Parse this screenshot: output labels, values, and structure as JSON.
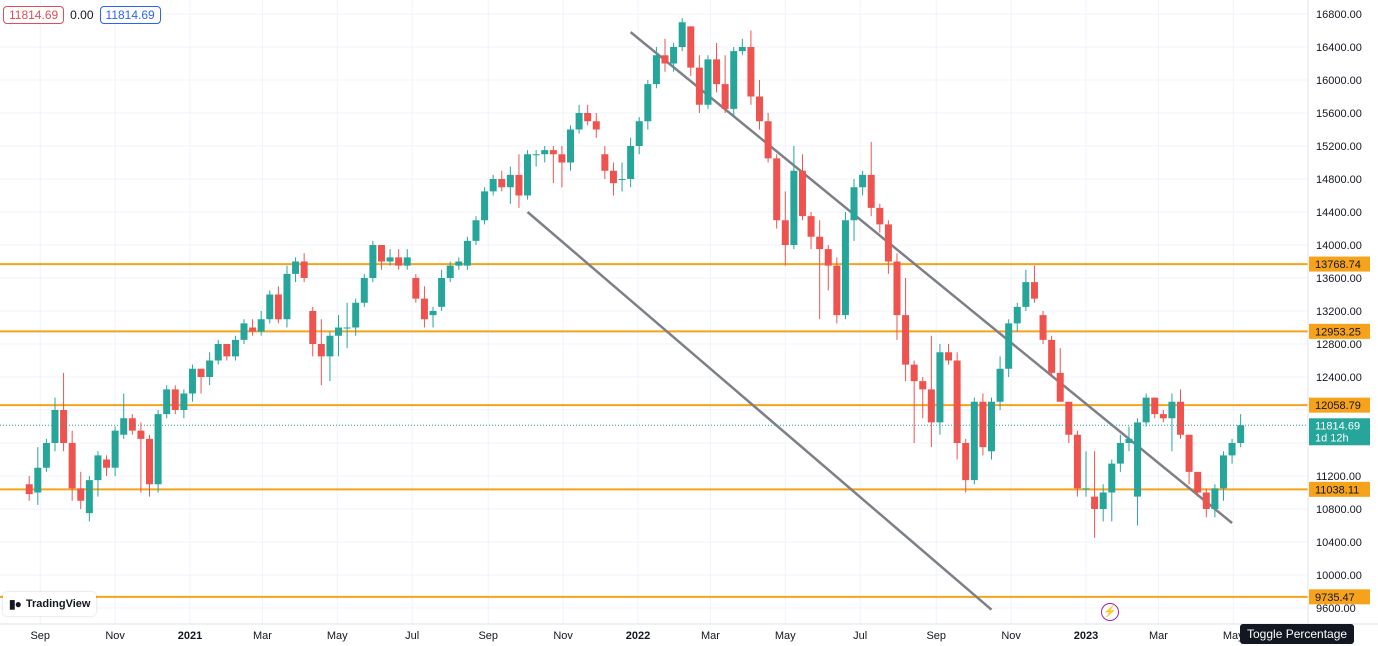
{
  "header": {
    "open_value": "11814.69",
    "change_value": "0.00",
    "close_value": "11814.69"
  },
  "logo": {
    "brand": "TradingView"
  },
  "tooltip": {
    "text": "Toggle Percentage"
  },
  "icons": {
    "lightning": "lightning-icon",
    "logo": "tradingview-logo-icon"
  },
  "colors": {
    "up": "#26a69a",
    "down": "#ef5350",
    "level": "#f7a21b",
    "trendline": "#7e8088",
    "last_price": "#26a69a"
  },
  "chart_data": {
    "type": "candlestick",
    "ylim": [
      9500,
      16850
    ],
    "x_tick_labels": [
      {
        "label": "Sep",
        "date": "2020-09-01"
      },
      {
        "label": "Nov",
        "date": "2020-11-01"
      },
      {
        "label": "2021",
        "date": "2021-01-01"
      },
      {
        "label": "Mar",
        "date": "2021-03-01"
      },
      {
        "label": "May",
        "date": "2021-05-01"
      },
      {
        "label": "Jul",
        "date": "2021-07-01"
      },
      {
        "label": "Sep",
        "date": "2021-09-01"
      },
      {
        "label": "Nov",
        "date": "2021-11-01"
      },
      {
        "label": "2022",
        "date": "2022-01-01"
      },
      {
        "label": "Mar",
        "date": "2022-03-01"
      },
      {
        "label": "May",
        "date": "2022-05-01"
      },
      {
        "label": "Jul",
        "date": "2022-07-01"
      },
      {
        "label": "Sep",
        "date": "2022-09-01"
      },
      {
        "label": "Nov",
        "date": "2022-11-01"
      },
      {
        "label": "2023",
        "date": "2023-01-01"
      },
      {
        "label": "Mar",
        "date": "2023-03-01"
      },
      {
        "label": "May",
        "date": "2023-05-01"
      }
    ],
    "y_ticks": [
      "16800.00",
      "16400.00",
      "16000.00",
      "15600.00",
      "15200.00",
      "14800.00",
      "14400.00",
      "14000.00",
      "13600.00",
      "13200.00",
      "12800.00",
      "12400.00",
      "11200.00",
      "10800.00",
      "10400.00",
      "10000.00",
      "9600.00"
    ],
    "levels": [
      {
        "value": 13768.74,
        "label": "13768.74"
      },
      {
        "value": 12953.25,
        "label": "12953.25"
      },
      {
        "value": 12058.79,
        "label": "12058.79"
      },
      {
        "value": 11038.11,
        "label": "11038.11"
      },
      {
        "value": 9735.47,
        "label": "9735.47"
      }
    ],
    "last_price": {
      "value": 11814.69,
      "label": "11814.69",
      "countdown": "1d 12h"
    },
    "trendlines": [
      {
        "start": {
          "date": "2021-12-26",
          "value": 16580
        },
        "end": {
          "date": "2023-04-30",
          "value": 10630
        }
      },
      {
        "start": {
          "date": "2021-10-03",
          "value": 14400
        },
        "end": {
          "date": "2022-10-16",
          "value": 9580
        }
      }
    ],
    "candles": [
      [
        "2020-08-23",
        11100,
        11200,
        10900,
        10980
      ],
      [
        "2020-08-30",
        11000,
        11550,
        10850,
        11300
      ],
      [
        "2020-09-06",
        11300,
        11650,
        11250,
        11600
      ],
      [
        "2020-09-13",
        11600,
        12150,
        11500,
        12000
      ],
      [
        "2020-09-20",
        12000,
        12450,
        11500,
        11600
      ],
      [
        "2020-09-27",
        11600,
        11750,
        10900,
        11050
      ],
      [
        "2020-10-04",
        11050,
        11250,
        10800,
        10900
      ],
      [
        "2020-10-11",
        10750,
        11200,
        10650,
        11150
      ],
      [
        "2020-10-18",
        11150,
        11500,
        10950,
        11450
      ],
      [
        "2020-10-25",
        11400,
        11450,
        11200,
        11300
      ],
      [
        "2020-11-01",
        11300,
        11800,
        11200,
        11750
      ],
      [
        "2020-11-08",
        11700,
        12200,
        11650,
        11900
      ],
      [
        "2020-11-15",
        11900,
        11950,
        11700,
        11750
      ],
      [
        "2020-11-22",
        11750,
        11850,
        11000,
        11650
      ],
      [
        "2020-11-29",
        11650,
        11700,
        10950,
        11100
      ],
      [
        "2020-12-06",
        11100,
        12000,
        11000,
        11950
      ],
      [
        "2020-12-13",
        11950,
        12300,
        11900,
        12250
      ],
      [
        "2020-12-20",
        12250,
        12300,
        11950,
        12000
      ],
      [
        "2020-12-27",
        12000,
        12250,
        11900,
        12200
      ],
      [
        "2021-01-03",
        12200,
        12550,
        12100,
        12500
      ],
      [
        "2021-01-10",
        12500,
        12500,
        12200,
        12400
      ],
      [
        "2021-01-17",
        12400,
        12700,
        12300,
        12600
      ],
      [
        "2021-01-24",
        12600,
        12850,
        12550,
        12800
      ],
      [
        "2021-01-31",
        12800,
        12800,
        12600,
        12650
      ],
      [
        "2021-02-07",
        12650,
        12900,
        12600,
        12850
      ],
      [
        "2021-02-14",
        12850,
        13100,
        12800,
        13050
      ],
      [
        "2021-02-21",
        13000,
        13100,
        12900,
        12950
      ],
      [
        "2021-02-28",
        12950,
        13200,
        12900,
        13100
      ],
      [
        "2021-03-07",
        13100,
        13450,
        13050,
        13400
      ],
      [
        "2021-03-14",
        13400,
        13500,
        13050,
        13100
      ],
      [
        "2021-03-21",
        13100,
        13750,
        13000,
        13650
      ],
      [
        "2021-03-28",
        13650,
        13850,
        13550,
        13800
      ],
      [
        "2021-04-04",
        13800,
        13900,
        13550,
        13600
      ],
      [
        "2021-04-11",
        13200,
        13250,
        12650,
        12800
      ],
      [
        "2021-04-18",
        12800,
        13100,
        12300,
        12650
      ],
      [
        "2021-04-25",
        12650,
        12950,
        12350,
        12900
      ],
      [
        "2021-05-02",
        12900,
        13150,
        12650,
        13000
      ],
      [
        "2021-05-09",
        13000,
        13300,
        12750,
        13000
      ],
      [
        "2021-05-16",
        13000,
        13350,
        12900,
        13300
      ],
      [
        "2021-05-23",
        13300,
        13650,
        13250,
        13600
      ],
      [
        "2021-05-30",
        13600,
        14050,
        13550,
        14000
      ],
      [
        "2021-06-06",
        14000,
        14000,
        13700,
        13800
      ],
      [
        "2021-06-13",
        13800,
        13950,
        13750,
        13850
      ],
      [
        "2021-06-20",
        13850,
        13950,
        13700,
        13750
      ],
      [
        "2021-06-27",
        13750,
        13950,
        13700,
        13850
      ],
      [
        "2021-07-04",
        13600,
        13650,
        13300,
        13350
      ],
      [
        "2021-07-11",
        13350,
        13500,
        13000,
        13100
      ],
      [
        "2021-07-18",
        13150,
        13250,
        13000,
        13200
      ],
      [
        "2021-07-25",
        13250,
        13700,
        13200,
        13600
      ],
      [
        "2021-08-01",
        13600,
        13800,
        13550,
        13750
      ],
      [
        "2021-08-08",
        13750,
        13850,
        13700,
        13800
      ],
      [
        "2021-08-15",
        13750,
        14100,
        13700,
        14050
      ],
      [
        "2021-08-22",
        14050,
        14350,
        14000,
        14300
      ],
      [
        "2021-08-29",
        14300,
        14700,
        14250,
        14650
      ],
      [
        "2021-09-05",
        14650,
        14850,
        14600,
        14800
      ],
      [
        "2021-09-12",
        14800,
        14900,
        14650,
        14700
      ],
      [
        "2021-09-19",
        14700,
        14950,
        14500,
        14850
      ],
      [
        "2021-09-26",
        14850,
        15100,
        14450,
        14600
      ],
      [
        "2021-10-03",
        14600,
        15150,
        14550,
        15100
      ],
      [
        "2021-10-10",
        15100,
        15150,
        14950,
        15100
      ],
      [
        "2021-10-17",
        15100,
        15200,
        15000,
        15150
      ],
      [
        "2021-10-24",
        15150,
        15200,
        14750,
        15100
      ],
      [
        "2021-10-31",
        15100,
        15200,
        14700,
        15000
      ],
      [
        "2021-11-07",
        15000,
        15450,
        14900,
        15400
      ],
      [
        "2021-11-14",
        15400,
        15700,
        15350,
        15600
      ],
      [
        "2021-11-21",
        15600,
        15700,
        15450,
        15500
      ],
      [
        "2021-11-28",
        15500,
        15600,
        15300,
        15400
      ],
      [
        "2021-12-05",
        15100,
        15200,
        14800,
        14900
      ],
      [
        "2021-12-12",
        14900,
        15000,
        14600,
        14750
      ],
      [
        "2021-12-19",
        14800,
        15000,
        14650,
        14800
      ],
      [
        "2021-12-26",
        14800,
        15300,
        14700,
        15200
      ],
      [
        "2022-01-02",
        15200,
        15550,
        15100,
        15500
      ],
      [
        "2022-01-09",
        15500,
        16000,
        15400,
        15950
      ],
      [
        "2022-01-16",
        15950,
        16400,
        15900,
        16300
      ],
      [
        "2022-01-23",
        16300,
        16500,
        16100,
        16200
      ],
      [
        "2022-01-30",
        16200,
        16450,
        16100,
        16400
      ],
      [
        "2022-02-06",
        16400,
        16750,
        16350,
        16700
      ],
      [
        "2022-02-13",
        16650,
        16650,
        16050,
        16150
      ],
      [
        "2022-02-20",
        16150,
        16300,
        15600,
        15700
      ],
      [
        "2022-02-27",
        15700,
        16300,
        15650,
        16250
      ],
      [
        "2022-03-06",
        16250,
        16450,
        15850,
        15950
      ],
      [
        "2022-03-13",
        15950,
        16300,
        15600,
        15650
      ],
      [
        "2022-03-20",
        15650,
        16400,
        15550,
        16350
      ],
      [
        "2022-03-27",
        16350,
        16500,
        16300,
        16400
      ],
      [
        "2022-04-03",
        16400,
        16600,
        15700,
        15800
      ],
      [
        "2022-04-10",
        15800,
        16000,
        15400,
        15500
      ],
      [
        "2022-04-17",
        15500,
        15600,
        15000,
        15050
      ],
      [
        "2022-04-24",
        15050,
        15100,
        14200,
        14300
      ],
      [
        "2022-05-01",
        14300,
        14650,
        13750,
        14000
      ],
      [
        "2022-05-08",
        14000,
        15200,
        13950,
        14900
      ],
      [
        "2022-05-15",
        14900,
        15100,
        14300,
        14350
      ],
      [
        "2022-05-22",
        14350,
        14400,
        13950,
        14100
      ],
      [
        "2022-05-29",
        14100,
        14300,
        13100,
        13950
      ],
      [
        "2022-06-05",
        13950,
        14000,
        13450,
        13750
      ],
      [
        "2022-06-12",
        13750,
        13850,
        13050,
        13150
      ],
      [
        "2022-06-19",
        13150,
        14400,
        13100,
        14300
      ],
      [
        "2022-06-26",
        14300,
        14800,
        14050,
        14700
      ],
      [
        "2022-07-03",
        14700,
        14900,
        14600,
        14850
      ],
      [
        "2022-07-10",
        14850,
        15250,
        14350,
        14450
      ],
      [
        "2022-07-17",
        14450,
        14500,
        14150,
        14250
      ],
      [
        "2022-07-24",
        14250,
        14300,
        13650,
        13800
      ],
      [
        "2022-07-31",
        13800,
        13900,
        12850,
        13150
      ],
      [
        "2022-08-07",
        13150,
        13600,
        12350,
        12550
      ],
      [
        "2022-08-14",
        12550,
        12600,
        11600,
        12350
      ],
      [
        "2022-08-21",
        12350,
        12400,
        11900,
        12250
      ],
      [
        "2022-08-28",
        12250,
        12900,
        11550,
        11850
      ],
      [
        "2022-09-04",
        11850,
        12800,
        11700,
        12700
      ],
      [
        "2022-09-11",
        12700,
        12800,
        12550,
        12600
      ],
      [
        "2022-09-18",
        12600,
        12700,
        11400,
        11600
      ],
      [
        "2022-09-25",
        11600,
        11650,
        11000,
        11150
      ],
      [
        "2022-10-02",
        11150,
        12150,
        11100,
        12100
      ],
      [
        "2022-10-09",
        12100,
        12200,
        11450,
        11550
      ],
      [
        "2022-10-16",
        11500,
        12150,
        11400,
        12100
      ],
      [
        "2022-10-23",
        12100,
        12650,
        12000,
        12500
      ],
      [
        "2022-10-30",
        12500,
        13100,
        12400,
        13050
      ],
      [
        "2022-11-06",
        13050,
        13300,
        12950,
        13250
      ],
      [
        "2022-11-13",
        13250,
        13700,
        13200,
        13550
      ],
      [
        "2022-11-20",
        13550,
        13750,
        13300,
        13350
      ],
      [
        "2022-11-27",
        13150,
        13200,
        12800,
        12850
      ],
      [
        "2022-12-04",
        12850,
        12900,
        12400,
        12450
      ],
      [
        "2022-12-11",
        12450,
        12750,
        12100,
        12100
      ],
      [
        "2022-12-18",
        12100,
        12100,
        11600,
        11700
      ],
      [
        "2022-12-25",
        11700,
        11750,
        10950,
        11050
      ],
      [
        "2023-01-01",
        11050,
        11500,
        10950,
        11050
      ],
      [
        "2023-01-08",
        10950,
        11500,
        10450,
        10800
      ],
      [
        "2023-01-15",
        10800,
        11100,
        10650,
        11000
      ],
      [
        "2023-01-22",
        11000,
        11400,
        10650,
        11350
      ],
      [
        "2023-01-29",
        11350,
        11700,
        11250,
        11600
      ],
      [
        "2023-02-05",
        11600,
        11800,
        11500,
        11650
      ],
      [
        "2023-02-12",
        10950,
        11900,
        10600,
        11850
      ],
      [
        "2023-02-19",
        11850,
        12200,
        11800,
        12150
      ],
      [
        "2023-02-26",
        12150,
        12150,
        11900,
        11950
      ],
      [
        "2023-03-05",
        11950,
        12000,
        11850,
        11900
      ],
      [
        "2023-03-12",
        11900,
        12200,
        11500,
        12100
      ],
      [
        "2023-03-19",
        12100,
        12250,
        11650,
        11700
      ],
      [
        "2023-03-26",
        11700,
        11700,
        11100,
        11250
      ],
      [
        "2023-04-02",
        11250,
        11250,
        10950,
        11000
      ],
      [
        "2023-04-09",
        11000,
        11050,
        10700,
        10800
      ],
      [
        "2023-04-16",
        10800,
        11100,
        10700,
        11050
      ],
      [
        "2023-04-23",
        11050,
        11500,
        10900,
        11450
      ],
      [
        "2023-04-30",
        11450,
        11650,
        11350,
        11600
      ],
      [
        "2023-05-07",
        11600,
        11950,
        11550,
        11815
      ]
    ]
  }
}
